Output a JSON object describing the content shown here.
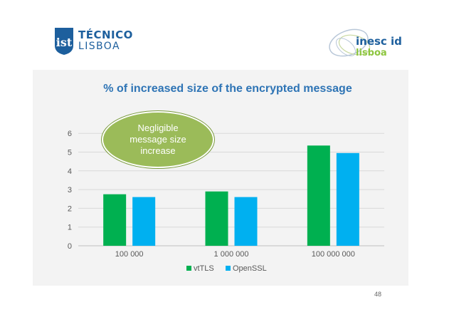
{
  "logos": {
    "tecnico": {
      "line1": "TÉCNICO",
      "line2": "LISBOA",
      "color": "#1d5f9d"
    },
    "inesc": {
      "line1": "inesc id",
      "line2": "lisboa",
      "color_primary": "#1d5f9d",
      "color_secondary": "#8dc63f"
    }
  },
  "callout": {
    "text": "Negligible message size increase",
    "color": "#9bbb59"
  },
  "page_number": "48",
  "chart_data": {
    "type": "bar",
    "title": "% of increased size of the encrypted message",
    "categories": [
      "100 000",
      "1 000 000",
      "100 000 000"
    ],
    "series": [
      {
        "name": "vtTLS",
        "values": [
          2.75,
          2.9,
          5.35
        ],
        "color": "#00b050"
      },
      {
        "name": "OpenSSL",
        "values": [
          2.6,
          2.6,
          4.95
        ],
        "color": "#00b0f0"
      }
    ],
    "ylim": [
      0,
      6
    ],
    "yticks": [
      "0",
      "1",
      "2",
      "3",
      "4",
      "5",
      "6"
    ],
    "grid": true,
    "legend": "bottom"
  }
}
